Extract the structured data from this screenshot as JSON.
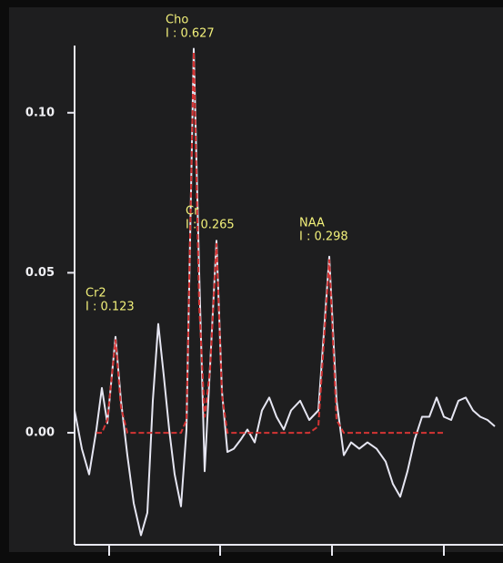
{
  "chart_data": {
    "type": "line",
    "x": [
      0,
      8,
      16,
      24,
      30,
      36,
      45,
      51,
      58,
      65,
      73,
      80,
      86,
      92,
      98,
      104,
      110,
      117,
      123,
      131,
      137,
      143,
      149,
      156,
      162,
      168,
      175,
      183,
      190,
      198,
      206,
      214,
      222,
      230,
      238,
      248,
      258,
      268,
      280,
      288,
      296,
      304,
      313,
      322,
      332,
      342,
      350,
      358,
      366,
      374,
      382,
      390,
      398,
      406,
      414,
      422,
      430,
      438,
      446,
      454,
      462
    ],
    "xlim": [
      0,
      468
    ],
    "xticks": [
      38,
      160,
      283,
      406
    ],
    "ylim": [
      -0.035,
      0.121
    ],
    "yticks": [
      {
        "value": 0,
        "label": "0.00"
      },
      {
        "value": 0.05,
        "label": "0.05"
      },
      {
        "value": 0.1,
        "label": "0.10"
      }
    ],
    "series": [
      {
        "color": "#e6e6f2",
        "values": [
          0.007,
          -0.005,
          -0.013,
          0.001,
          0.014,
          0.003,
          0.03,
          0.01,
          -0.007,
          -0.022,
          -0.032,
          -0.025,
          0.01,
          0.034,
          0.018,
          0.001,
          -0.013,
          -0.023,
          0.001,
          0.12,
          0.05,
          -0.012,
          0.021,
          0.06,
          0.013,
          -0.006,
          -0.005,
          -0.002,
          0.001,
          -0.003,
          0.007,
          0.011,
          0.005,
          0.001,
          0.007,
          0.01,
          0.004,
          0.007,
          0.055,
          0.01,
          -0.007,
          -0.003,
          -0.005,
          -0.003,
          -0.005,
          -0.009,
          -0.016,
          -0.02,
          -0.012,
          -0.002,
          0.005,
          0.005,
          0.011,
          0.005,
          0.004,
          0.01,
          0.011,
          0.007,
          0.005,
          0.004,
          0.002
        ]
      },
      {
        "color": "#d43434",
        "values": [
          null,
          null,
          null,
          0.0,
          0.0,
          0.004,
          0.029,
          0.008,
          0.0,
          0.0,
          0.0,
          0.0,
          0.0,
          0.0,
          0.0,
          0.0,
          0.0,
          0.0,
          0.004,
          0.119,
          0.04,
          0.005,
          0.02,
          0.059,
          0.012,
          0.0,
          0.0,
          0.0,
          0.0,
          0.0,
          0.0,
          0.0,
          0.0,
          0.0,
          0.0,
          0.0,
          0.0,
          0.002,
          0.054,
          0.004,
          0.0,
          0.0,
          0.0,
          0.0,
          0.0,
          0.0,
          0.0,
          0.0,
          0.0,
          0.0,
          0.0,
          0.0,
          0.0,
          0.0,
          null,
          null,
          null,
          null,
          null,
          null,
          null
        ]
      }
    ],
    "annotations": [
      {
        "name": "Cho",
        "text": "I : 0.627"
      },
      {
        "name": "Cr",
        "text": "I : 0.265"
      },
      {
        "name": "NAA",
        "text": "I : 0.298"
      },
      {
        "name": "Cr2",
        "text": "I : 0.123"
      }
    ]
  }
}
